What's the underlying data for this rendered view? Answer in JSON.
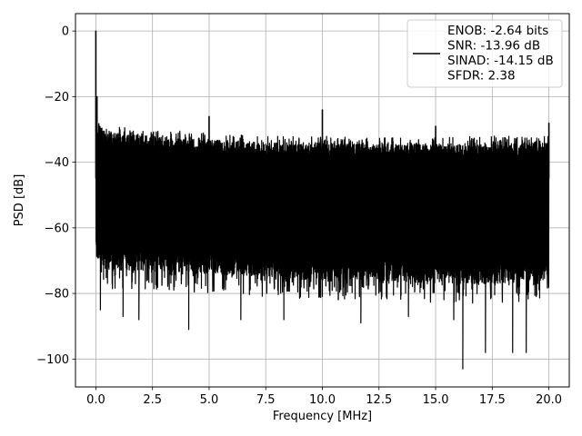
{
  "chart_data": {
    "type": "line",
    "title": "",
    "xlabel": "Frequency [MHz]",
    "ylabel": "PSD [dB]",
    "xlim": [
      -0.9,
      20.9
    ],
    "ylim": [
      -108.5,
      5.3
    ],
    "xticks": [
      0.0,
      2.5,
      5.0,
      7.5,
      10.0,
      12.5,
      15.0,
      17.5,
      20.0
    ],
    "xtick_labels": [
      "0.0",
      "2.5",
      "5.0",
      "7.5",
      "10.0",
      "12.5",
      "15.0",
      "17.5",
      "20.0"
    ],
    "yticks": [
      0,
      -20,
      -40,
      -60,
      -80,
      -100
    ],
    "ytick_labels": [
      "0",
      "−20",
      "−40",
      "−60",
      "−80",
      "−100"
    ],
    "grid": true,
    "legend_position": "top-right",
    "series": [
      {
        "color": "#000000",
        "noise_floor": {
          "freq_range_mhz": [
            0.0,
            20.0
          ],
          "upper_envelope_db": {
            "x": [
              0.0,
              0.5,
              2.5,
              5.0,
              7.5,
              10.0,
              12.5,
              15.0,
              17.5,
              20.0
            ],
            "y": [
              -28,
              -31,
              -32,
              -33,
              -34,
              -34,
              -34.5,
              -34.5,
              -34,
              -34
            ]
          },
          "lower_envelope_db": {
            "x": [
              0.0,
              0.5,
              2.5,
              5.0,
              7.5,
              10.0,
              12.5,
              15.0,
              17.5,
              20.0
            ],
            "y": [
              -70,
              -73,
              -73,
              -74,
              -75,
              -76,
              -76,
              -77,
              -77,
              -76
            ]
          },
          "deep_dips": [
            {
              "x": 0.2,
              "y": -85
            },
            {
              "x": 1.2,
              "y": -87
            },
            {
              "x": 1.9,
              "y": -88
            },
            {
              "x": 4.1,
              "y": -91
            },
            {
              "x": 6.4,
              "y": -88
            },
            {
              "x": 8.3,
              "y": -88
            },
            {
              "x": 11.7,
              "y": -89
            },
            {
              "x": 13.8,
              "y": -87
            },
            {
              "x": 15.8,
              "y": -88
            },
            {
              "x": 16.2,
              "y": -103
            },
            {
              "x": 17.2,
              "y": -98
            },
            {
              "x": 18.4,
              "y": -98
            },
            {
              "x": 19.0,
              "y": -98
            }
          ]
        },
        "peaks": [
          {
            "x": 0.0,
            "y": 0.0
          },
          {
            "x": 0.05,
            "y": -20
          },
          {
            "x": 5.0,
            "y": -26
          },
          {
            "x": 10.0,
            "y": -24
          },
          {
            "x": 15.0,
            "y": -29
          },
          {
            "x": 20.0,
            "y": -28
          }
        ]
      }
    ],
    "legend": {
      "lines": [
        "ENOB: -2.64 bits",
        "SNR: -13.96 dB",
        "SINAD: -14.15 dB",
        "SFDR: 2.38"
      ]
    }
  }
}
